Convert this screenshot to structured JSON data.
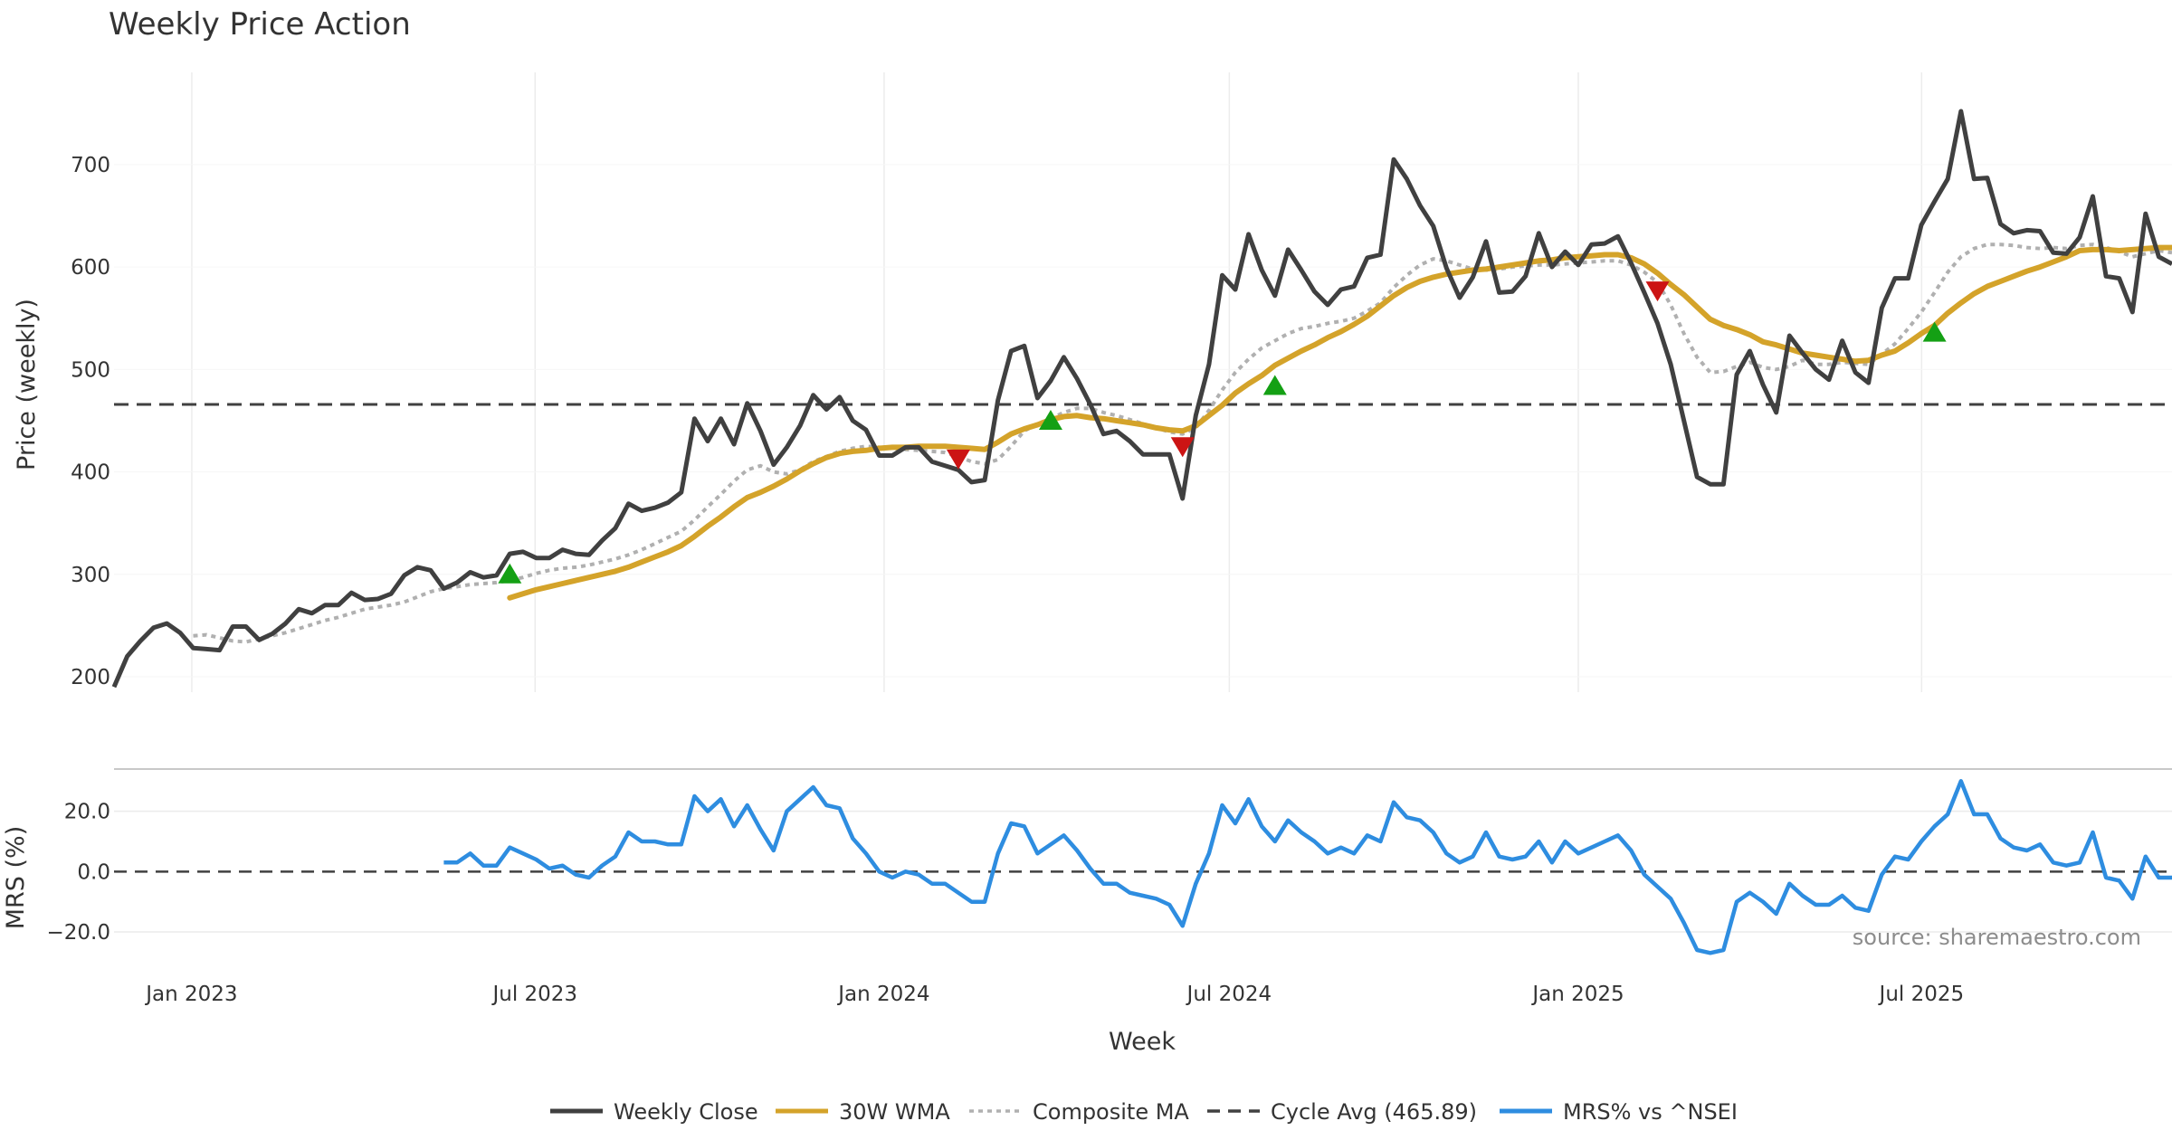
{
  "chart_data": {
    "type": "line",
    "title": "Weekly Price Action",
    "xlabel": "Week",
    "source": "source: sharemaestro.com",
    "x_start_date": "2022-11-21",
    "x_end_date": "2025-11-10",
    "x_ticks": [
      {
        "date": "2023-01-01",
        "label": "Jan 2023"
      },
      {
        "date": "2023-07-01",
        "label": "Jul 2023"
      },
      {
        "date": "2024-01-01",
        "label": "Jan 2024"
      },
      {
        "date": "2024-07-01",
        "label": "Jul 2024"
      },
      {
        "date": "2025-01-01",
        "label": "Jan 2025"
      },
      {
        "date": "2025-07-01",
        "label": "Jul 2025"
      }
    ],
    "price_panel": {
      "ylabel": "Price (weekly)",
      "ylim": [
        185,
        790
      ],
      "yticks": [
        200,
        300,
        400,
        500,
        600,
        700
      ],
      "cycle_avg": 465.89,
      "weekly_close": [
        190,
        220,
        235,
        248,
        252,
        243,
        228,
        227,
        226,
        249,
        249,
        236,
        242,
        252,
        266,
        262,
        270,
        270,
        282,
        275,
        276,
        281,
        299,
        307,
        304,
        286,
        292,
        302,
        297,
        299,
        320,
        322,
        316,
        316,
        324,
        320,
        319,
        333,
        345,
        369,
        362,
        365,
        370,
        380,
        452,
        430,
        452,
        427,
        467,
        440,
        407,
        424,
        445,
        475,
        461,
        473,
        450,
        441,
        416,
        416,
        424,
        424,
        410,
        406,
        402,
        390,
        392,
        470,
        518,
        523,
        472,
        489,
        512,
        491,
        466,
        437,
        440,
        430,
        417,
        417,
        417,
        374,
        455,
        505,
        592,
        578,
        632,
        597,
        572,
        617,
        597,
        576,
        563,
        578,
        581,
        609,
        612,
        705,
        686,
        660,
        640,
        599,
        570,
        590,
        625,
        575,
        576,
        591,
        633,
        600,
        615,
        602,
        622,
        623,
        630,
        604,
        575,
        545,
        505,
        450,
        395,
        388,
        388,
        495,
        518,
        485,
        458,
        533,
        516,
        500,
        490,
        528,
        497,
        487,
        560,
        589,
        589,
        641,
        664,
        686,
        752,
        686,
        687,
        642,
        633,
        636,
        635,
        614,
        613,
        629,
        669,
        591,
        589,
        556,
        652,
        610,
        603
      ],
      "wma30": [
        null,
        null,
        null,
        null,
        null,
        null,
        null,
        null,
        null,
        null,
        null,
        null,
        null,
        null,
        null,
        null,
        null,
        null,
        null,
        null,
        null,
        null,
        null,
        null,
        null,
        null,
        null,
        null,
        null,
        null,
        277,
        281,
        285,
        288,
        291,
        294,
        297,
        300,
        303,
        307,
        312,
        317,
        322,
        328,
        337,
        347,
        356,
        366,
        375,
        380,
        386,
        393,
        401,
        408,
        414,
        418,
        420,
        421,
        423,
        424,
        424,
        425,
        425,
        425,
        424,
        423,
        422,
        429,
        437,
        442,
        446,
        451,
        454,
        455,
        453,
        452,
        450,
        448,
        446,
        443,
        441,
        440,
        445,
        455,
        465,
        477,
        486,
        494,
        504,
        511,
        518,
        524,
        531,
        537,
        544,
        552,
        562,
        572,
        580,
        586,
        590,
        593,
        595,
        597,
        598,
        600,
        602,
        604,
        606,
        607,
        609,
        610,
        611,
        612,
        612,
        609,
        603,
        594,
        583,
        573,
        561,
        549,
        543,
        539,
        534,
        527,
        524,
        520,
        516,
        514,
        512,
        510,
        508,
        509,
        514,
        518,
        526,
        535,
        543,
        555,
        565,
        574,
        581,
        586,
        591,
        596,
        600,
        605,
        610,
        616,
        617,
        617,
        616,
        617,
        618,
        619,
        619
      ],
      "composite_ma": [
        null,
        null,
        null,
        null,
        null,
        null,
        240,
        241,
        238,
        235,
        234,
        237,
        240,
        243,
        247,
        251,
        255,
        258,
        262,
        266,
        268,
        270,
        273,
        278,
        283,
        286,
        288,
        290,
        291,
        292,
        294,
        297,
        301,
        304,
        306,
        307,
        309,
        312,
        315,
        319,
        324,
        330,
        336,
        342,
        353,
        366,
        378,
        391,
        402,
        406,
        400,
        398,
        402,
        410,
        415,
        420,
        423,
        425,
        424,
        423,
        422,
        421,
        420,
        419,
        415,
        410,
        408,
        412,
        425,
        440,
        447,
        452,
        458,
        462,
        462,
        458,
        455,
        451,
        447,
        443,
        439,
        437,
        443,
        460,
        480,
        497,
        510,
        521,
        528,
        535,
        540,
        542,
        545,
        547,
        550,
        557,
        565,
        580,
        592,
        602,
        608,
        606,
        602,
        598,
        597,
        598,
        600,
        601,
        602,
        602,
        603,
        604,
        605,
        606,
        606,
        602,
        595,
        585,
        563,
        535,
        512,
        497,
        498,
        503,
        507,
        502,
        500,
        503,
        509,
        505,
        505,
        507,
        506,
        505,
        515,
        525,
        540,
        556,
        575,
        595,
        610,
        618,
        622,
        622,
        621,
        619,
        618,
        619,
        618,
        621,
        622,
        619,
        615,
        610,
        613,
        616,
        614
      ],
      "buy_signals": [
        {
          "index": 30,
          "price": 300
        },
        {
          "index": 71,
          "price": 450
        },
        {
          "index": 88,
          "price": 484
        },
        {
          "index": 138,
          "price": 536
        }
      ],
      "sell_signals": [
        {
          "index": 64,
          "price": 413
        },
        {
          "index": 81,
          "price": 425
        },
        {
          "index": 117,
          "price": 577
        }
      ]
    },
    "mrs_panel": {
      "ylabel": "MRS (%)",
      "ylim": [
        -29,
        34
      ],
      "yticks": [
        -20.0,
        0.0,
        20.0
      ],
      "ytick_labels": [
        "−20.0",
        "0.0",
        "20.0"
      ],
      "mrs": [
        null,
        null,
        null,
        null,
        null,
        null,
        null,
        null,
        null,
        null,
        null,
        null,
        null,
        null,
        null,
        null,
        null,
        null,
        null,
        null,
        null,
        null,
        null,
        null,
        null,
        3,
        3,
        6,
        2,
        2,
        8,
        6,
        4,
        1,
        2,
        -1,
        -2,
        2,
        5,
        13,
        10,
        10,
        9,
        9,
        25,
        20,
        24,
        15,
        22,
        14,
        7,
        20,
        24,
        28,
        22,
        21,
        11,
        6,
        0,
        -2,
        0,
        -1,
        -4,
        -4,
        -7,
        -10,
        -10,
        6,
        16,
        15,
        6,
        9,
        12,
        7,
        1,
        -4,
        -4,
        -7,
        -8,
        -9,
        -11,
        -18,
        -4,
        6,
        22,
        16,
        24,
        15,
        10,
        17,
        13,
        10,
        6,
        8,
        6,
        12,
        10,
        23,
        18,
        17,
        13,
        6,
        3,
        5,
        13,
        5,
        4,
        5,
        10,
        3,
        10,
        6,
        8,
        10,
        12,
        7,
        -1,
        -5,
        -9,
        -17,
        -26,
        -27,
        -26,
        -10,
        -7,
        -10,
        -14,
        -4,
        -8,
        -11,
        -11,
        -8,
        -12,
        -13,
        -1,
        5,
        4,
        10,
        15,
        19,
        30,
        19,
        19,
        11,
        8,
        7,
        9,
        3,
        2,
        3,
        13,
        -2,
        -3,
        -9,
        5,
        -2,
        -2
      ]
    },
    "legend": [
      {
        "label": "Weekly Close",
        "color": "#404040",
        "style": "solid"
      },
      {
        "label": "30W WMA",
        "color": "#d4a32a",
        "style": "solid"
      },
      {
        "label": "Composite MA",
        "color": "#b0b0b0",
        "style": "dotted"
      },
      {
        "label": "Cycle Avg (465.89)",
        "color": "#404040",
        "style": "dashed"
      },
      {
        "label": "MRS% vs ^NSEI",
        "color": "#2e8de0",
        "style": "solid"
      }
    ],
    "colors": {
      "close": "#404040",
      "wma": "#d4a32a",
      "composite": "#b0b0b0",
      "cycle": "#404040",
      "mrs": "#2e8de0",
      "buy": "#14a014",
      "sell": "#cc1414",
      "grid": "#ececec"
    }
  }
}
